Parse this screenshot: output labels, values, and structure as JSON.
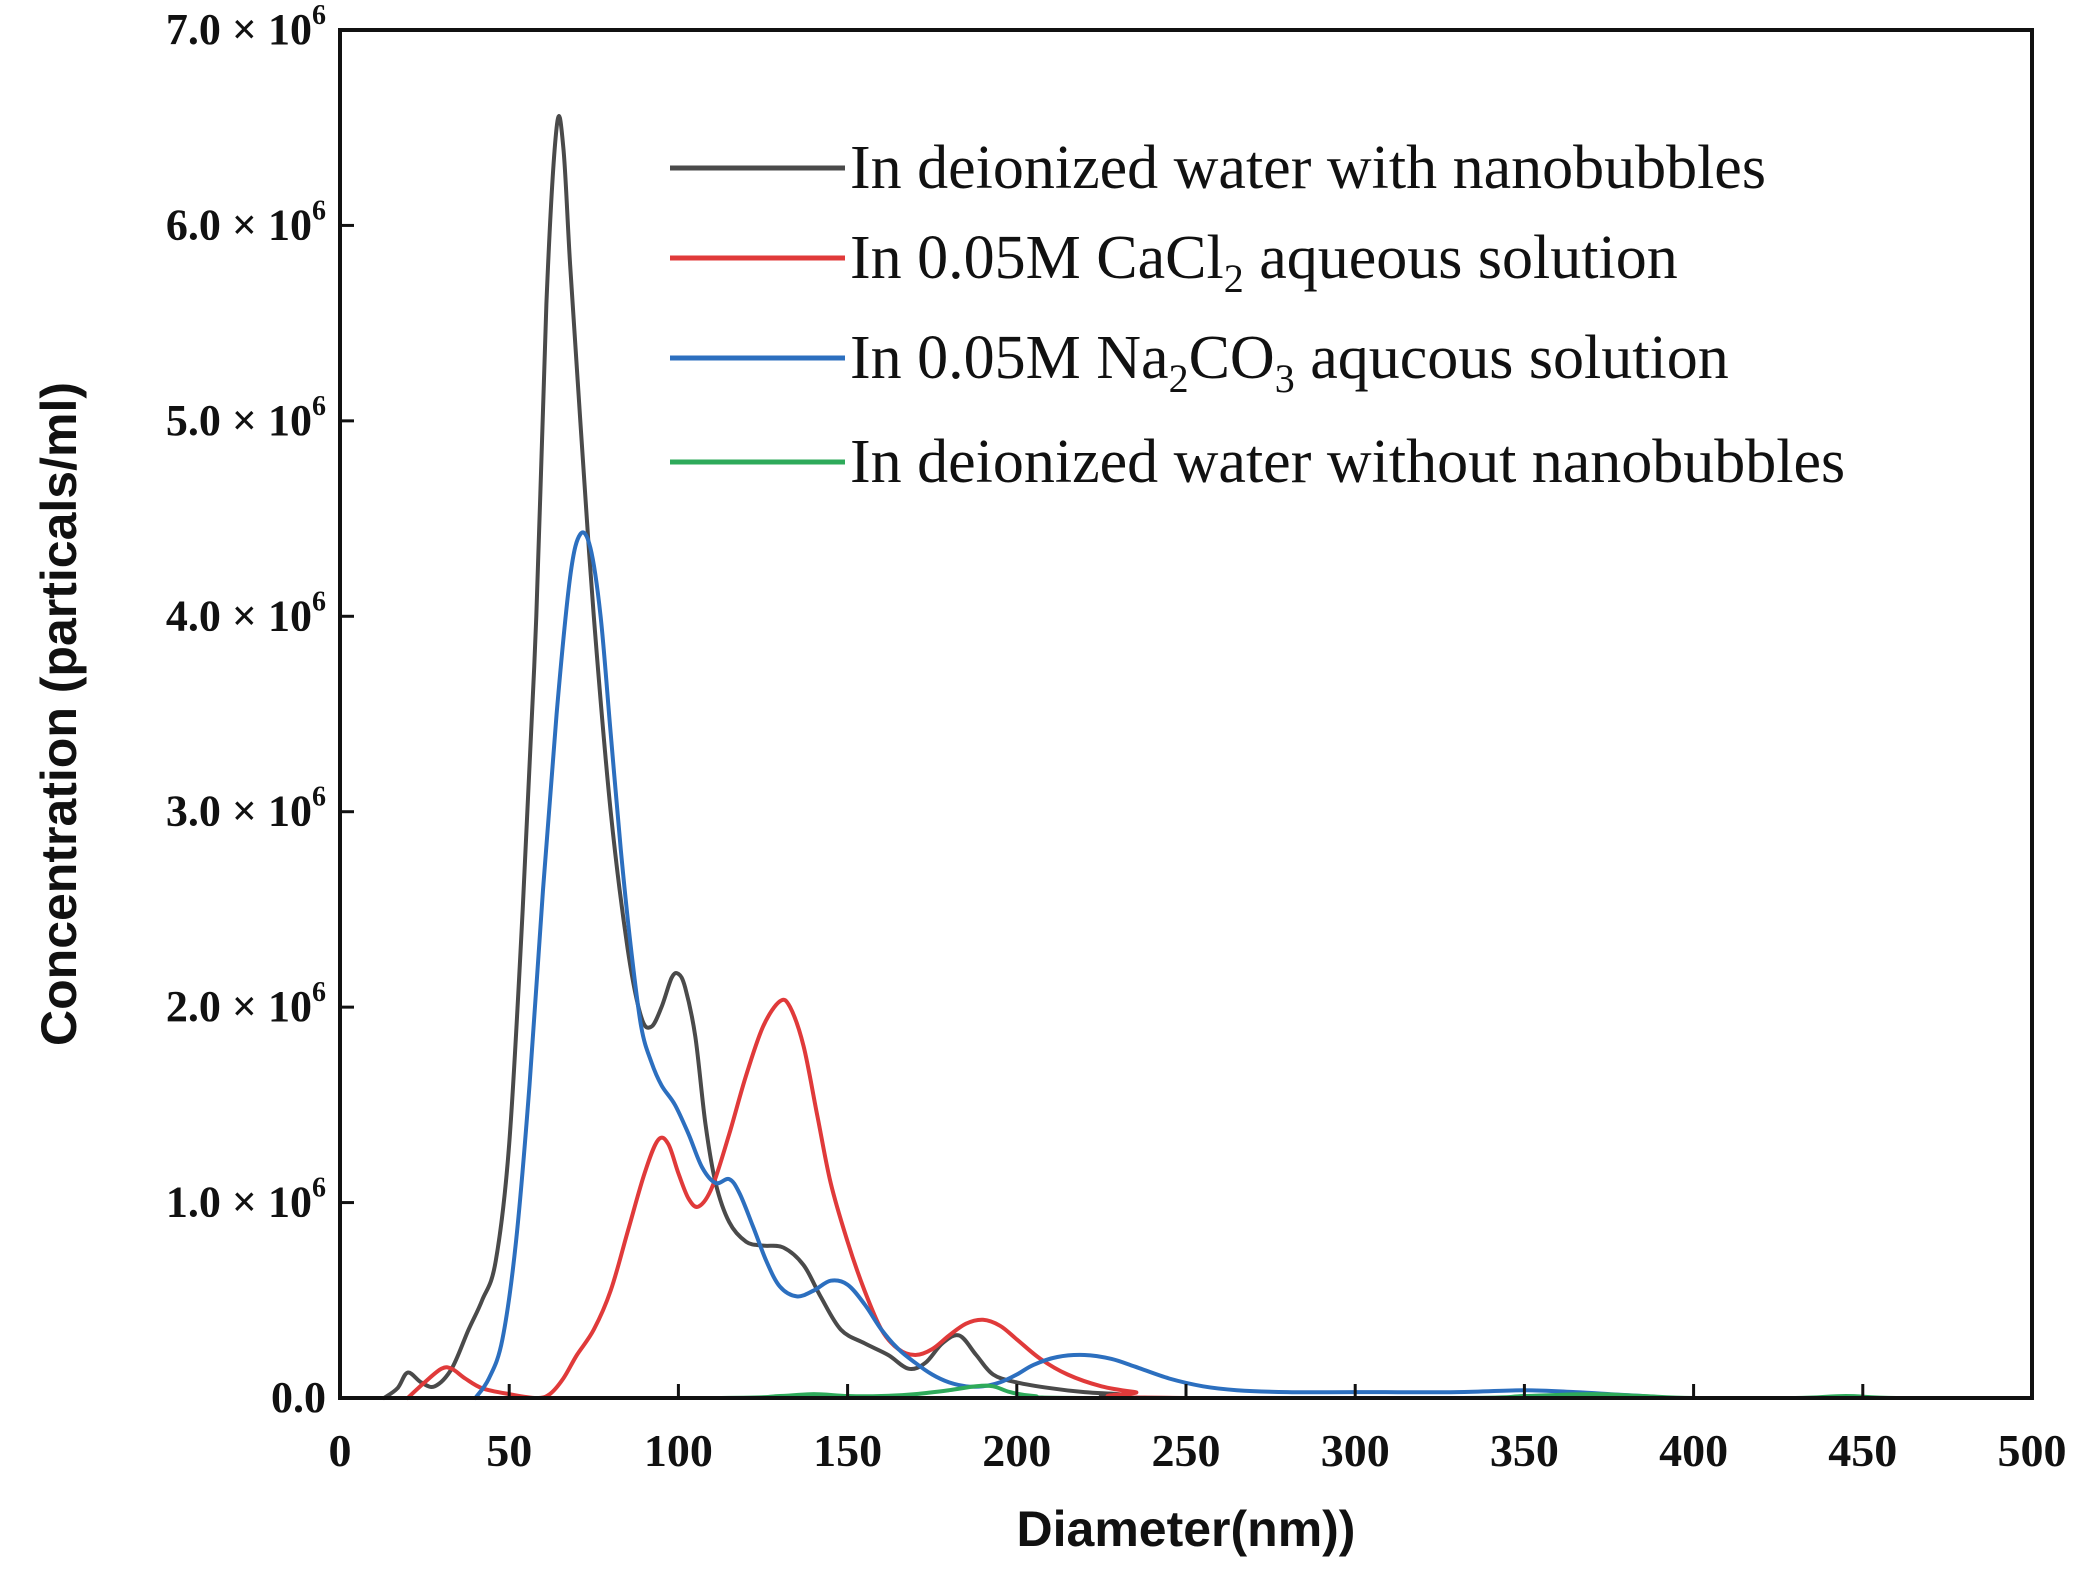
{
  "chart_data": {
    "type": "line",
    "title": "",
    "xlabel": "Diameter(nm))",
    "ylabel": "Concentration (particals/ml)",
    "xlim": [
      0,
      500
    ],
    "ylim": [
      0,
      7.0
    ],
    "y_unit_exponent": "6",
    "y_multiplier_text": " × 10",
    "x_ticks": [
      {
        "value": 0,
        "label": "0"
      },
      {
        "value": 50,
        "label": "50"
      },
      {
        "value": 100,
        "label": "100"
      },
      {
        "value": 150,
        "label": "150"
      },
      {
        "value": 200,
        "label": "200"
      },
      {
        "value": 250,
        "label": "250"
      },
      {
        "value": 300,
        "label": "300"
      },
      {
        "value": 350,
        "label": "350"
      },
      {
        "value": 400,
        "label": "400"
      },
      {
        "value": 450,
        "label": "450"
      },
      {
        "value": 500,
        "label": "500"
      }
    ],
    "y_ticks": [
      {
        "value": 0,
        "label": "0.0",
        "exp": false
      },
      {
        "value": 1,
        "label": "1.0",
        "exp": true
      },
      {
        "value": 2,
        "label": "2.0",
        "exp": true
      },
      {
        "value": 3,
        "label": "3.0",
        "exp": true
      },
      {
        "value": 4,
        "label": "4.0",
        "exp": true
      },
      {
        "value": 5,
        "label": "5.0",
        "exp": true
      },
      {
        "value": 6,
        "label": "6.0",
        "exp": true
      },
      {
        "value": 7,
        "label": "7.0",
        "exp": true
      }
    ],
    "legend_position": "top-right",
    "series": [
      {
        "name": "In deionized water with nanobubbles",
        "legend_parts": [
          {
            "t": "In deionized water with nanobubbles",
            "sub": false
          }
        ],
        "color": "#4a4a4a",
        "points": [
          [
            13,
            0
          ],
          [
            17,
            0.05
          ],
          [
            20,
            0.13
          ],
          [
            24,
            0.08
          ],
          [
            28,
            0.06
          ],
          [
            33,
            0.15
          ],
          [
            38,
            0.35
          ],
          [
            42,
            0.5
          ],
          [
            46,
            0.7
          ],
          [
            50,
            1.3
          ],
          [
            54,
            2.5
          ],
          [
            58,
            4.0
          ],
          [
            61,
            5.6
          ],
          [
            64,
            6.5
          ],
          [
            66,
            6.4
          ],
          [
            68,
            5.8
          ],
          [
            71,
            5.0
          ],
          [
            75,
            4.0
          ],
          [
            80,
            3.0
          ],
          [
            85,
            2.3
          ],
          [
            89,
            1.95
          ],
          [
            92,
            1.9
          ],
          [
            95,
            2.0
          ],
          [
            98,
            2.15
          ],
          [
            100,
            2.17
          ],
          [
            102,
            2.1
          ],
          [
            105,
            1.85
          ],
          [
            108,
            1.4
          ],
          [
            111,
            1.1
          ],
          [
            115,
            0.9
          ],
          [
            120,
            0.8
          ],
          [
            125,
            0.78
          ],
          [
            131,
            0.77
          ],
          [
            137,
            0.68
          ],
          [
            142,
            0.52
          ],
          [
            148,
            0.35
          ],
          [
            155,
            0.28
          ],
          [
            162,
            0.22
          ],
          [
            168,
            0.15
          ],
          [
            173,
            0.18
          ],
          [
            178,
            0.28
          ],
          [
            183,
            0.32
          ],
          [
            188,
            0.22
          ],
          [
            193,
            0.12
          ],
          [
            200,
            0.08
          ],
          [
            210,
            0.05
          ],
          [
            220,
            0.03
          ],
          [
            230,
            0.02
          ],
          [
            250,
            0
          ],
          [
            500,
            0
          ]
        ]
      },
      {
        "name": "In 0.05M CaCl2 aqueous solution",
        "legend_parts": [
          {
            "t": "In 0.05M CaCl",
            "sub": false
          },
          {
            "t": "2",
            "sub": true
          },
          {
            "t": " aqueous solution",
            "sub": false
          }
        ],
        "color": "#e03a3a",
        "points": [
          [
            20,
            0
          ],
          [
            25,
            0.08
          ],
          [
            30,
            0.15
          ],
          [
            33,
            0.15
          ],
          [
            37,
            0.1
          ],
          [
            42,
            0.05
          ],
          [
            50,
            0.02
          ],
          [
            58,
            0.0
          ],
          [
            62,
            0.02
          ],
          [
            66,
            0.1
          ],
          [
            70,
            0.22
          ],
          [
            75,
            0.35
          ],
          [
            80,
            0.55
          ],
          [
            85,
            0.85
          ],
          [
            90,
            1.15
          ],
          [
            94,
            1.32
          ],
          [
            97,
            1.3
          ],
          [
            100,
            1.15
          ],
          [
            103,
            1.02
          ],
          [
            106,
            0.98
          ],
          [
            110,
            1.08
          ],
          [
            115,
            1.35
          ],
          [
            120,
            1.65
          ],
          [
            125,
            1.9
          ],
          [
            130,
            2.03
          ],
          [
            133,
            2.0
          ],
          [
            137,
            1.8
          ],
          [
            141,
            1.45
          ],
          [
            145,
            1.1
          ],
          [
            150,
            0.8
          ],
          [
            155,
            0.55
          ],
          [
            160,
            0.35
          ],
          [
            165,
            0.25
          ],
          [
            170,
            0.22
          ],
          [
            175,
            0.25
          ],
          [
            180,
            0.32
          ],
          [
            185,
            0.38
          ],
          [
            190,
            0.4
          ],
          [
            195,
            0.37
          ],
          [
            200,
            0.3
          ],
          [
            207,
            0.2
          ],
          [
            215,
            0.12
          ],
          [
            225,
            0.06
          ],
          [
            235,
            0.03
          ],
          [
            250,
            0
          ],
          [
            500,
            0
          ]
        ]
      },
      {
        "name": "In 0.05M Na2CO3 aqucous solution",
        "legend_parts": [
          {
            "t": "In 0.05M Na",
            "sub": false
          },
          {
            "t": "2",
            "sub": true
          },
          {
            "t": "CO",
            "sub": false
          },
          {
            "t": "3",
            "sub": true
          },
          {
            "t": " aqucous solution",
            "sub": false
          }
        ],
        "color": "#2c6fbf",
        "points": [
          [
            40,
            0
          ],
          [
            44,
            0.1
          ],
          [
            48,
            0.3
          ],
          [
            52,
            0.8
          ],
          [
            56,
            1.6
          ],
          [
            60,
            2.6
          ],
          [
            64,
            3.5
          ],
          [
            68,
            4.2
          ],
          [
            71,
            4.42
          ],
          [
            74,
            4.35
          ],
          [
            77,
            4.0
          ],
          [
            80,
            3.4
          ],
          [
            83,
            2.8
          ],
          [
            86,
            2.3
          ],
          [
            89,
            1.9
          ],
          [
            92,
            1.72
          ],
          [
            95,
            1.6
          ],
          [
            99,
            1.5
          ],
          [
            103,
            1.35
          ],
          [
            107,
            1.18
          ],
          [
            111,
            1.1
          ],
          [
            115,
            1.12
          ],
          [
            118,
            1.05
          ],
          [
            122,
            0.88
          ],
          [
            126,
            0.7
          ],
          [
            130,
            0.57
          ],
          [
            135,
            0.52
          ],
          [
            140,
            0.55
          ],
          [
            145,
            0.6
          ],
          [
            150,
            0.58
          ],
          [
            155,
            0.48
          ],
          [
            160,
            0.35
          ],
          [
            165,
            0.25
          ],
          [
            170,
            0.18
          ],
          [
            175,
            0.12
          ],
          [
            180,
            0.08
          ],
          [
            185,
            0.06
          ],
          [
            190,
            0.06
          ],
          [
            195,
            0.08
          ],
          [
            200,
            0.12
          ],
          [
            205,
            0.17
          ],
          [
            212,
            0.21
          ],
          [
            220,
            0.22
          ],
          [
            228,
            0.2
          ],
          [
            235,
            0.16
          ],
          [
            245,
            0.1
          ],
          [
            255,
            0.06
          ],
          [
            265,
            0.04
          ],
          [
            280,
            0.03
          ],
          [
            300,
            0.03
          ],
          [
            330,
            0.03
          ],
          [
            350,
            0.04
          ],
          [
            365,
            0.03
          ],
          [
            375,
            0.02
          ],
          [
            385,
            0.01
          ],
          [
            395,
            0
          ],
          [
            500,
            0
          ]
        ]
      },
      {
        "name": "In deionized water without nanobubbles",
        "legend_parts": [
          {
            "t": "In deionized water without nanobubbles",
            "sub": false
          }
        ],
        "color": "#2eaa5a",
        "points": [
          [
            0,
            0
          ],
          [
            110,
            0
          ],
          [
            130,
            0.01
          ],
          [
            140,
            0.02
          ],
          [
            150,
            0.01
          ],
          [
            160,
            0.01
          ],
          [
            170,
            0.02
          ],
          [
            180,
            0.04
          ],
          [
            188,
            0.06
          ],
          [
            193,
            0.06
          ],
          [
            198,
            0.03
          ],
          [
            205,
            0.01
          ],
          [
            220,
            0
          ],
          [
            330,
            0
          ],
          [
            350,
            0.01
          ],
          [
            370,
            0.02
          ],
          [
            385,
            0.01
          ],
          [
            400,
            0
          ],
          [
            430,
            0
          ],
          [
            445,
            0.01
          ],
          [
            460,
            0
          ],
          [
            500,
            0
          ]
        ]
      }
    ]
  }
}
